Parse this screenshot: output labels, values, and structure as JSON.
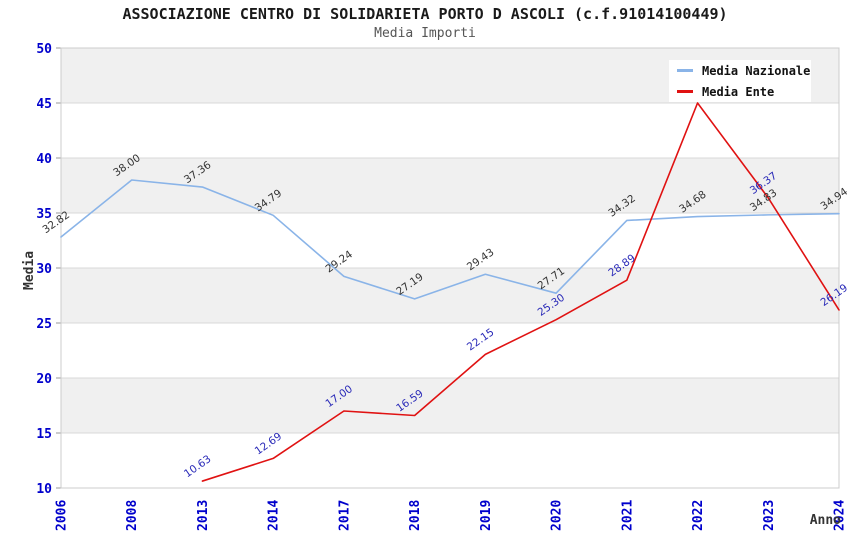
{
  "colors": {
    "nazionale_line": "#8ab4e8",
    "ente_line": "#e01212",
    "tick_label": "#0000cc",
    "nazionale_point_label": "#333333",
    "ente_point_label": "#2a2ab8",
    "band_fill": "#f0f0f0",
    "band_alt_fill": "#ffffff",
    "gridline": "#d8d8d8",
    "plot_border": "#cccccc",
    "tick_mark": "#999999"
  },
  "chart_data": {
    "type": "line",
    "title": "ASSOCIAZIONE CENTRO DI SOLIDARIETA PORTO D ASCOLI (c.f.91014100449)",
    "subtitle": "Media Importi",
    "xlabel": "Anno",
    "ylabel": "Media",
    "ylim": [
      10,
      50
    ],
    "ytick_step": 5,
    "yticks": [
      50,
      45,
      40,
      35,
      30,
      25,
      20,
      15,
      10
    ],
    "categories": [
      "2006",
      "2008",
      "2013",
      "2014",
      "2017",
      "2018",
      "2019",
      "2020",
      "2021",
      "2022",
      "2023",
      "2024"
    ],
    "grid": "horizontal-bands",
    "legend_position": "top-right",
    "series": [
      {
        "name": "Media Nazionale",
        "values": [
          32.82,
          38.0,
          37.36,
          34.79,
          29.24,
          27.19,
          29.43,
          27.71,
          34.32,
          34.68,
          34.83,
          34.94
        ],
        "point_labels": [
          "32.82",
          "38.00",
          "37.36",
          "34.79",
          "29.24",
          "27.19",
          "29.43",
          "27.71",
          "34.32",
          "34.68",
          "34.83",
          "34.94"
        ]
      },
      {
        "name": "Media Ente",
        "values": [
          null,
          null,
          10.63,
          12.69,
          17.0,
          16.59,
          22.15,
          25.3,
          28.89,
          45.0,
          36.37,
          26.19
        ],
        "point_labels": [
          null,
          null,
          "10.63",
          "12.69",
          "17.00",
          "16.59",
          "22.15",
          "25.30",
          "28.89",
          "",
          "36.37",
          "26.19"
        ]
      }
    ]
  }
}
